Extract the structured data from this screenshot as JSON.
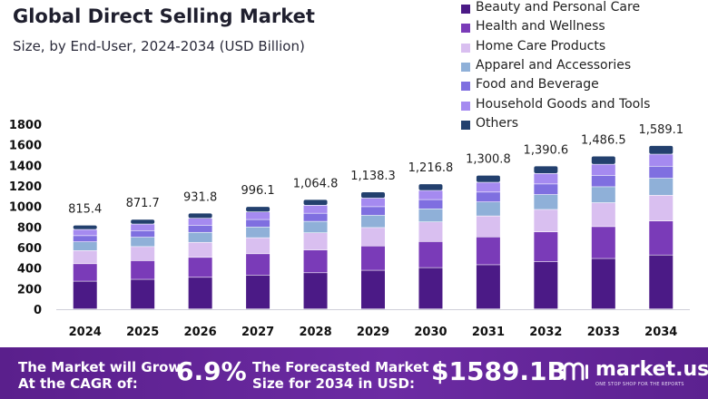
{
  "header": {
    "title": "Global Direct Selling Market",
    "subtitle": "Size, by End-User, 2024-2034 (USD Billion)"
  },
  "chart_data": {
    "type": "bar",
    "stacked": true,
    "title": "Global Direct Selling Market",
    "subtitle": "Size, by End-User, 2024-2034 (USD Billion)",
    "xlabel": "",
    "ylabel": "",
    "ylim": [
      0,
      1800
    ],
    "yticks": [
      0,
      200,
      400,
      600,
      800,
      1000,
      1200,
      1400,
      1600,
      1800
    ],
    "categories": [
      "2024",
      "2025",
      "2026",
      "2027",
      "2028",
      "2029",
      "2030",
      "2031",
      "2032",
      "2033",
      "2034"
    ],
    "totals": [
      815.4,
      871.7,
      931.8,
      996.1,
      1064.8,
      1138.3,
      1216.8,
      1300.8,
      1390.6,
      1486.5,
      1589.1
    ],
    "total_labels": [
      "815.4",
      "871.7",
      "931.8",
      "996.1",
      "1,064.8",
      "1,138.3",
      "1,216.8",
      "1,300.8",
      "1,390.6",
      "1,486.5",
      "1,589.1"
    ],
    "series": [
      {
        "name": "Beauty and Personal Care",
        "color": "#4b1a86",
        "values": [
          270,
          288,
          308,
          329,
          352,
          376,
          402,
          430,
          460,
          491,
          525
        ]
      },
      {
        "name": "Health and Wellness",
        "color": "#7a3bb8",
        "values": [
          170,
          182,
          194,
          208,
          222,
          237,
          254,
          271,
          290,
          310,
          331
        ]
      },
      {
        "name": "Home Care Products",
        "color": "#d9bff0",
        "values": [
          128,
          137,
          146,
          156,
          167,
          179,
          191,
          204,
          218,
          233,
          250
        ]
      },
      {
        "name": "Apparel and Accessories",
        "color": "#8fb0d8",
        "values": [
          85,
          91,
          97,
          104,
          111,
          119,
          127,
          136,
          145,
          155,
          166
        ]
      },
      {
        "name": "Food and Beverage",
        "color": "#7f6fe0",
        "values": [
          60,
          64,
          69,
          73,
          79,
          84,
          90,
          96,
          103,
          110,
          117
        ]
      },
      {
        "name": "Household Goods and Tools",
        "color": "#a58af0",
        "values": [
          60,
          64,
          69,
          74,
          78,
          84,
          89,
          95,
          102,
          109,
          117
        ]
      },
      {
        "name": "Others",
        "color": "#23406e",
        "values": [
          42.4,
          45.7,
          48.8,
          52.1,
          55.8,
          59.3,
          63.8,
          68.8,
          72.6,
          78.5,
          83.1
        ]
      }
    ]
  },
  "footer": {
    "line1a": "The Market will Grow",
    "line1b": "At the CAGR of:",
    "cagr": "6.9%",
    "line2a": "The Forecasted Market",
    "line2b": "Size for 2034 in USD:",
    "forecast": "$1589.1B",
    "brand": "market.us",
    "tagline": "ONE STOP SHOP FOR THE REPORTS"
  }
}
